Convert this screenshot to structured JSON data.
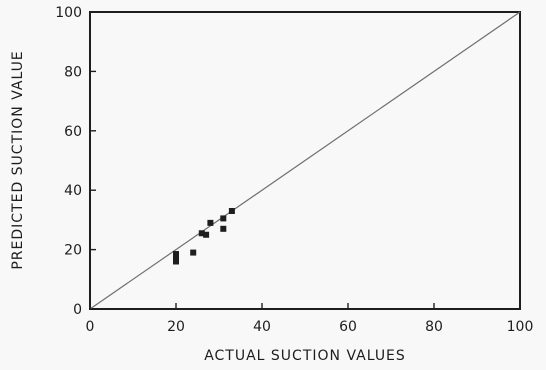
{
  "chart_data": {
    "type": "scatter",
    "title": "",
    "xlabel": "ACTUAL SUCTION VALUES",
    "ylabel": "PREDICTED SUCTION VALUE",
    "xlim": [
      0,
      100
    ],
    "ylim": [
      0,
      100
    ],
    "xticks": [
      0,
      20,
      40,
      60,
      80,
      100
    ],
    "yticks": [
      0,
      20,
      40,
      60,
      80,
      100
    ],
    "xtick_labels": [
      "0",
      "20",
      "40",
      "60",
      "80",
      "100"
    ],
    "ytick_labels": [
      "0",
      "20",
      "40",
      "60",
      "80",
      "100"
    ],
    "grid": false,
    "reference_line": {
      "x": [
        0,
        100
      ],
      "y": [
        0,
        100
      ]
    },
    "series": [
      {
        "points": [
          {
            "x": 20,
            "y": 18.5
          },
          {
            "x": 20,
            "y": 17
          },
          {
            "x": 20,
            "y": 16
          },
          {
            "x": 24,
            "y": 19
          },
          {
            "x": 26,
            "y": 25.5
          },
          {
            "x": 27,
            "y": 25
          },
          {
            "x": 28,
            "y": 29
          },
          {
            "x": 31,
            "y": 27
          },
          {
            "x": 31,
            "y": 30.5
          },
          {
            "x": 33,
            "y": 33
          }
        ]
      }
    ]
  }
}
